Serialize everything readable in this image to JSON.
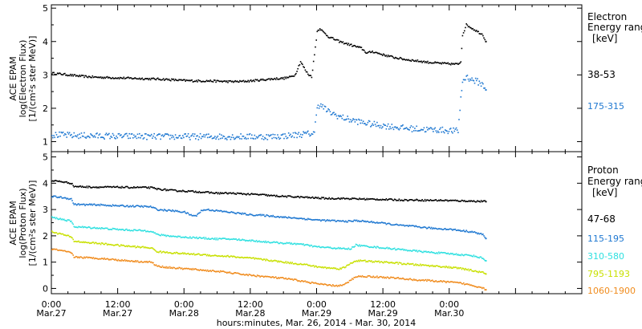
{
  "chart_data": [
    {
      "type": "scatter",
      "panel": "electron",
      "ylabel_lines": [
        "ACE EPAM",
        "log(Electron Flux)",
        "[1/(cm²s ster MeV)]"
      ],
      "legend_title_lines": [
        "Electron",
        "Energy ranges",
        "[keV]"
      ],
      "ylim": [
        0.7,
        5.1
      ],
      "yticks": [
        "1",
        "2",
        "3",
        "4",
        "5"
      ],
      "ytick_values": [
        1,
        2,
        3,
        4,
        5
      ],
      "series": [
        {
          "name": "38-53",
          "color": "#000000",
          "x": [
            0,
            2,
            4,
            6,
            8,
            10,
            12,
            14,
            16,
            18,
            20,
            22,
            24,
            26,
            28,
            30,
            32,
            34,
            36,
            38,
            40,
            42,
            43,
            44,
            45,
            46,
            46.5,
            47,
            47.5,
            48,
            48.5,
            49,
            50,
            52,
            54,
            56,
            57,
            58,
            60,
            62,
            64,
            66,
            68,
            70,
            72,
            73.5,
            74,
            74.3,
            75,
            76,
            77,
            78,
            78.5
          ],
          "values": [
            3.05,
            3.02,
            2.98,
            2.95,
            2.93,
            2.92,
            2.91,
            2.9,
            2.89,
            2.88,
            2.87,
            2.85,
            2.83,
            2.82,
            2.82,
            2.81,
            2.8,
            2.8,
            2.82,
            2.85,
            2.88,
            2.9,
            2.93,
            3.0,
            3.4,
            3.1,
            3.0,
            2.95,
            3.6,
            4.3,
            4.4,
            4.3,
            4.15,
            4.0,
            3.9,
            3.8,
            3.65,
            3.7,
            3.6,
            3.52,
            3.46,
            3.42,
            3.38,
            3.35,
            3.33,
            3.32,
            3.4,
            4.2,
            4.5,
            4.4,
            4.3,
            4.2,
            4.0
          ]
        },
        {
          "name": "175-315",
          "color": "#1f78d1",
          "x": [
            0,
            2,
            4,
            6,
            8,
            10,
            12,
            14,
            16,
            18,
            20,
            22,
            24,
            26,
            28,
            30,
            32,
            34,
            36,
            38,
            40,
            42,
            44,
            46,
            47.5,
            48,
            49,
            50,
            52,
            54,
            56,
            58,
            60,
            62,
            64,
            66,
            68,
            70,
            72,
            73.5,
            74,
            74.3,
            75,
            76,
            77,
            78,
            78.5
          ],
          "values": [
            1.2,
            1.2,
            1.18,
            1.18,
            1.17,
            1.17,
            1.16,
            1.16,
            1.16,
            1.15,
            1.15,
            1.15,
            1.15,
            1.15,
            1.15,
            1.15,
            1.15,
            1.15,
            1.15,
            1.15,
            1.15,
            1.17,
            1.2,
            1.23,
            1.25,
            2.1,
            2.05,
            1.9,
            1.75,
            1.65,
            1.58,
            1.52,
            1.48,
            1.44,
            1.4,
            1.38,
            1.36,
            1.35,
            1.33,
            1.32,
            2.3,
            2.8,
            2.95,
            2.85,
            2.8,
            2.7,
            2.55
          ]
        }
      ]
    },
    {
      "type": "scatter",
      "panel": "proton",
      "ylabel_lines": [
        "ACE EPAM",
        "log(Proton Flux)",
        "[1/(cm²s ster MeV)]"
      ],
      "legend_title_lines": [
        "Proton",
        "Energy ranges",
        "[keV]"
      ],
      "ylim": [
        -0.2,
        5.2
      ],
      "yticks": [
        "0",
        "1",
        "2",
        "3",
        "4",
        "5"
      ],
      "ytick_values": [
        0,
        1,
        2,
        3,
        4,
        5
      ],
      "series": [
        {
          "name": "47-68",
          "color": "#000000",
          "x": [
            0,
            2,
            3.5,
            4,
            6,
            8,
            10,
            12,
            14,
            16,
            18,
            19,
            20,
            22,
            24,
            26,
            28,
            30,
            32,
            34,
            36,
            38,
            40,
            42,
            44,
            46,
            48,
            50,
            52,
            54,
            56,
            58,
            60,
            62,
            64,
            66,
            68,
            70,
            72,
            74,
            76,
            78,
            78.5
          ],
          "values": [
            4.1,
            4.05,
            4.0,
            3.88,
            3.86,
            3.85,
            3.85,
            3.85,
            3.84,
            3.84,
            3.83,
            3.78,
            3.76,
            3.72,
            3.7,
            3.68,
            3.65,
            3.62,
            3.62,
            3.6,
            3.58,
            3.56,
            3.52,
            3.5,
            3.48,
            3.46,
            3.44,
            3.42,
            3.42,
            3.41,
            3.4,
            3.39,
            3.38,
            3.37,
            3.36,
            3.36,
            3.35,
            3.35,
            3.34,
            3.33,
            3.32,
            3.31,
            3.3
          ]
        },
        {
          "name": "115-195",
          "color": "#1f78d1",
          "x": [
            0,
            2,
            3.5,
            4,
            6,
            8,
            10,
            12,
            14,
            16,
            18,
            19,
            20,
            22,
            24,
            25,
            26,
            27,
            28,
            30,
            32,
            34,
            36,
            38,
            40,
            42,
            44,
            46,
            48,
            50,
            52,
            54,
            55,
            56,
            58,
            60,
            62,
            64,
            66,
            68,
            70,
            72,
            74,
            76,
            78,
            78.5
          ],
          "values": [
            3.5,
            3.45,
            3.4,
            3.2,
            3.18,
            3.18,
            3.16,
            3.14,
            3.13,
            3.12,
            3.1,
            3.0,
            2.98,
            2.95,
            2.9,
            2.8,
            2.75,
            2.95,
            3.0,
            2.95,
            2.9,
            2.85,
            2.8,
            2.78,
            2.75,
            2.7,
            2.68,
            2.64,
            2.6,
            2.58,
            2.56,
            2.55,
            2.58,
            2.56,
            2.52,
            2.48,
            2.42,
            2.38,
            2.35,
            2.3,
            2.27,
            2.25,
            2.2,
            2.15,
            2.05,
            1.9
          ]
        },
        {
          "name": "310-580",
          "color": "#2ee0e0",
          "x": [
            0,
            2,
            3.5,
            4,
            6,
            8,
            10,
            12,
            14,
            16,
            18,
            19,
            20,
            22,
            24,
            26,
            28,
            30,
            32,
            34,
            36,
            38,
            40,
            42,
            44,
            46,
            48,
            50,
            52,
            54,
            55,
            56,
            58,
            60,
            62,
            64,
            66,
            68,
            70,
            72,
            74,
            76,
            78,
            78.5
          ],
          "values": [
            2.7,
            2.62,
            2.55,
            2.35,
            2.32,
            2.3,
            2.27,
            2.24,
            2.22,
            2.2,
            2.18,
            2.05,
            2.02,
            1.98,
            1.95,
            1.93,
            1.9,
            1.88,
            1.88,
            1.85,
            1.82,
            1.78,
            1.75,
            1.72,
            1.7,
            1.65,
            1.58,
            1.55,
            1.52,
            1.5,
            1.65,
            1.62,
            1.58,
            1.54,
            1.5,
            1.46,
            1.42,
            1.38,
            1.35,
            1.32,
            1.28,
            1.25,
            1.15,
            1.05
          ]
        },
        {
          "name": "795-1193",
          "color": "#c8e000",
          "x": [
            0,
            2,
            3.5,
            4,
            6,
            8,
            10,
            12,
            14,
            16,
            18,
            19,
            20,
            22,
            24,
            26,
            28,
            30,
            32,
            34,
            36,
            38,
            40,
            42,
            44,
            46,
            48,
            50,
            52,
            53,
            54,
            55,
            56,
            58,
            60,
            62,
            64,
            66,
            68,
            70,
            72,
            74,
            76,
            78,
            78.5
          ],
          "values": [
            2.15,
            2.05,
            1.95,
            1.8,
            1.75,
            1.72,
            1.68,
            1.64,
            1.6,
            1.57,
            1.54,
            1.4,
            1.38,
            1.35,
            1.32,
            1.3,
            1.27,
            1.24,
            1.22,
            1.18,
            1.15,
            1.1,
            1.05,
            1.0,
            0.95,
            0.9,
            0.82,
            0.78,
            0.75,
            0.8,
            0.95,
            1.05,
            1.05,
            1.02,
            1.0,
            0.97,
            0.93,
            0.9,
            0.87,
            0.84,
            0.8,
            0.76,
            0.68,
            0.6,
            0.55
          ]
        },
        {
          "name": "1060-1900",
          "color": "#f08c1e",
          "x": [
            0,
            2,
            3.5,
            4,
            6,
            8,
            10,
            12,
            14,
            16,
            18,
            19,
            20,
            22,
            24,
            26,
            28,
            30,
            32,
            34,
            36,
            38,
            40,
            42,
            44,
            46,
            48,
            50,
            52,
            53,
            54,
            55,
            56,
            58,
            60,
            62,
            64,
            66,
            68,
            70,
            72,
            74,
            76,
            78,
            78.5
          ],
          "values": [
            1.5,
            1.42,
            1.35,
            1.2,
            1.17,
            1.15,
            1.12,
            1.08,
            1.05,
            1.02,
            1.0,
            0.85,
            0.82,
            0.78,
            0.75,
            0.72,
            0.68,
            0.65,
            0.6,
            0.55,
            0.5,
            0.46,
            0.42,
            0.38,
            0.32,
            0.25,
            0.18,
            0.12,
            0.1,
            0.15,
            0.3,
            0.45,
            0.46,
            0.45,
            0.42,
            0.4,
            0.36,
            0.32,
            0.3,
            0.27,
            0.24,
            0.2,
            0.12,
            0.02,
            -0.05
          ]
        }
      ]
    }
  ],
  "x_axis": {
    "range_hours": [
      0,
      96
    ],
    "ticks": [
      {
        "hours": 0,
        "time": "0:00",
        "date": "Mar.27"
      },
      {
        "hours": 12,
        "time": "12:00",
        "date": "Mar.27"
      },
      {
        "hours": 24,
        "time": "0:00",
        "date": "Mar.28"
      },
      {
        "hours": 36,
        "time": "12:00",
        "date": "Mar.28"
      },
      {
        "hours": 48,
        "time": "0:00",
        "date": "Mar.29"
      },
      {
        "hours": 60,
        "time": "12:00",
        "date": "Mar.29"
      },
      {
        "hours": 72,
        "time": "0:00",
        "date": "Mar.30"
      }
    ],
    "label": "hours:minutes, Mar. 26, 2014 - Mar. 30, 2014"
  }
}
